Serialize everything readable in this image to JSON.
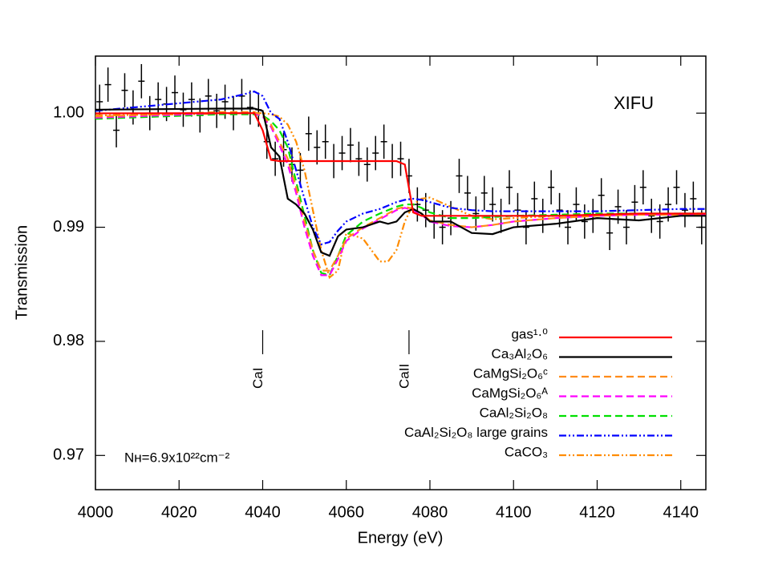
{
  "chart_data": {
    "type": "line",
    "xlabel": "Energy (eV)",
    "ylabel": "Transmission",
    "xlim": [
      4000,
      4146
    ],
    "ylim": [
      0.967,
      1.005
    ],
    "xticks": [
      4000,
      4020,
      4040,
      4060,
      4080,
      4100,
      4120,
      4140
    ],
    "yticks": [
      0.97,
      0.98,
      0.99,
      {
        "value": 1,
        "label": "1.00"
      }
    ],
    "instrument_label": "XIFU",
    "column_density_label": "Nʜ=6.9x10²²cm⁻²",
    "line_markers": [
      {
        "label": "CaI",
        "x": 4040
      },
      {
        "label": "CaII",
        "x": 4075
      }
    ],
    "legend_position": "lower right",
    "x": [
      4000,
      4030,
      4036,
      4038,
      4040,
      4042,
      4044,
      4046,
      4048,
      4050,
      4052,
      4054,
      4056,
      4058,
      4060,
      4064,
      4068,
      4070,
      4072,
      4074,
      4076,
      4078,
      4080,
      4085,
      4090,
      4095,
      4100,
      4110,
      4120,
      4130,
      4140,
      4146
    ],
    "series": [
      {
        "name": "gas¹·⁰",
        "color": "#ff0000",
        "linestyle": "solid",
        "values": [
          0.99998,
          1.0,
          1.0,
          1.0,
          0.9985,
          0.9959,
          0.9958,
          0.9958,
          0.9958,
          0.9958,
          0.9958,
          0.9958,
          0.9958,
          0.9958,
          0.9958,
          0.9958,
          0.9958,
          0.9958,
          0.9958,
          0.9955,
          0.9913,
          0.991,
          0.991,
          0.991,
          0.991,
          0.991,
          0.991,
          0.991,
          0.9911,
          0.9912,
          0.9912,
          0.9912
        ]
      },
      {
        "name": "Ca₃Al₂O₆",
        "color": "#000000",
        "linestyle": "solid",
        "values": [
          1.0003,
          1.0004,
          1.0004,
          1.0004,
          1.0002,
          0.997,
          0.9962,
          0.9925,
          0.992,
          0.9912,
          0.9898,
          0.9878,
          0.9875,
          0.9892,
          0.9898,
          0.99,
          0.9905,
          0.9903,
          0.9905,
          0.9913,
          0.9916,
          0.9912,
          0.9905,
          0.9905,
          0.9895,
          0.9894,
          0.99,
          0.9903,
          0.9908,
          0.9906,
          0.991,
          0.991
        ]
      },
      {
        "name": "CaMgSi₂O₆ᶜ",
        "color": "#ff8c1a",
        "linestyle": "dashed",
        "values": [
          0.9997,
          1.0001,
          1.0001,
          1.0001,
          0.9998,
          0.999,
          0.9975,
          0.996,
          0.9935,
          0.9905,
          0.988,
          0.9862,
          0.9862,
          0.9875,
          0.989,
          0.99,
          0.9908,
          0.9912,
          0.9916,
          0.9918,
          0.9916,
          0.9912,
          0.9906,
          0.9902,
          0.99,
          0.9902,
          0.9905,
          0.9908,
          0.991,
          0.9911,
          0.9911,
          0.9911
        ]
      },
      {
        "name": "CaMgSi₂O₆ᴬ",
        "color": "#ff00ff",
        "linestyle": "dashed",
        "values": [
          0.9996,
          1.0,
          1.0,
          1.0,
          0.9997,
          0.9988,
          0.9972,
          0.9955,
          0.993,
          0.99,
          0.9875,
          0.9858,
          0.9858,
          0.9872,
          0.9888,
          0.9899,
          0.9907,
          0.9911,
          0.9915,
          0.9917,
          0.9915,
          0.9911,
          0.9905,
          0.9901,
          0.99,
          0.9902,
          0.9905,
          0.9908,
          0.991,
          0.9911,
          0.9911,
          0.9911
        ]
      },
      {
        "name": "CaAl₂Si₂O₈",
        "color": "#00e000",
        "linestyle": "dashed",
        "values": [
          0.9995,
          0.9999,
          0.9999,
          0.9999,
          0.9998,
          0.9993,
          0.9985,
          0.997,
          0.994,
          0.991,
          0.988,
          0.986,
          0.9858,
          0.9875,
          0.9893,
          0.9905,
          0.9912,
          0.9915,
          0.9918,
          0.992,
          0.992,
          0.9917,
          0.9913,
          0.9908,
          0.9908,
          0.9909,
          0.991,
          0.9911,
          0.9912,
          0.9912,
          0.9912,
          0.9912
        ]
      },
      {
        "name": "CaAl₂Si₂O₈ large grains",
        "color": "#0000ff",
        "linestyle": "dashdotdot",
        "values": [
          1.0002,
          1.0012,
          1.0017,
          1.0019,
          1.0015,
          1.0,
          0.9995,
          0.9975,
          0.995,
          0.9925,
          0.99,
          0.9885,
          0.9887,
          0.9897,
          0.9905,
          0.9912,
          0.9916,
          0.9919,
          0.9922,
          0.9924,
          0.9925,
          0.9924,
          0.9922,
          0.9917,
          0.9915,
          0.9914,
          0.9914,
          0.9914,
          0.9914,
          0.9915,
          0.9916,
          0.9916
        ]
      },
      {
        "name": "CaCO₃",
        "color": "#ff8c00",
        "linestyle": "dashdotdot",
        "values": [
          0.9998,
          0.99995,
          1.0,
          1.0,
          1.0,
          0.9999,
          0.9997,
          0.999,
          0.9975,
          0.995,
          0.9915,
          0.988,
          0.9856,
          0.9862,
          0.9895,
          0.989,
          0.987,
          0.987,
          0.988,
          0.9905,
          0.992,
          0.9925,
          0.9926,
          0.9918,
          0.991,
          0.9907,
          0.9908,
          0.991,
          0.9911,
          0.9911,
          0.9912,
          0.9912
        ]
      }
    ],
    "observed": {
      "color": "#000000",
      "x": [
        4001,
        4003,
        4005,
        4007,
        4009,
        4011,
        4013,
        4015,
        4017,
        4019,
        4021,
        4023,
        4025,
        4027,
        4029,
        4031,
        4033,
        4035,
        4037,
        4039,
        4041,
        4043,
        4045,
        4047,
        4049,
        4051,
        4053,
        4055,
        4057,
        4059,
        4061,
        4063,
        4065,
        4067,
        4069,
        4071,
        4073,
        4075,
        4077,
        4079,
        4081,
        4083,
        4085,
        4087,
        4089,
        4091,
        4093,
        4095,
        4097,
        4099,
        4101,
        4103,
        4105,
        4107,
        4109,
        4111,
        4113,
        4115,
        4117,
        4119,
        4121,
        4123,
        4125,
        4127,
        4129,
        4131,
        4133,
        4135,
        4137,
        4139,
        4141,
        4143,
        4145
      ],
      "values": [
        1.001,
        1.0025,
        0.9985,
        1.002,
        1.0005,
        1.0028,
        1.0,
        1.0012,
        1.0008,
        1.0018,
        1.0003,
        1.0012,
        0.9998,
        1.0015,
        1.0002,
        1.001,
        1.0,
        1.0015,
        1.0005,
        1.0003,
        0.9975,
        0.996,
        0.9968,
        0.9955,
        0.995,
        0.9982,
        0.997,
        0.9975,
        0.9958,
        0.9965,
        0.9972,
        0.996,
        0.9955,
        0.9965,
        0.9975,
        0.9958,
        0.996,
        0.9945,
        0.992,
        0.9915,
        0.9905,
        0.99,
        0.9908,
        0.9945,
        0.993,
        0.9912,
        0.993,
        0.992,
        0.991,
        0.9935,
        0.9915,
        0.99,
        0.9925,
        0.991,
        0.9935,
        0.9915,
        0.99,
        0.992,
        0.9905,
        0.991,
        0.9928,
        0.9895,
        0.9918,
        0.99,
        0.9922,
        0.9935,
        0.991,
        0.9905,
        0.992,
        0.9935,
        0.9915,
        0.9925,
        0.99
      ],
      "errors": [
        0.0015,
        0.0015,
        0.0015,
        0.0015,
        0.0015,
        0.0015,
        0.0015,
        0.0015,
        0.0015,
        0.0015,
        0.0015,
        0.0015,
        0.0015,
        0.0015,
        0.0015,
        0.0015,
        0.0015,
        0.0015,
        0.0015,
        0.0015,
        0.0015,
        0.0015,
        0.0015,
        0.0015,
        0.0015,
        0.0015,
        0.0015,
        0.0015,
        0.0015,
        0.0015,
        0.0015,
        0.0015,
        0.0015,
        0.0015,
        0.0015,
        0.0015,
        0.0015,
        0.0015,
        0.0015,
        0.0015,
        0.0015,
        0.0015,
        0.0015,
        0.0015,
        0.0015,
        0.0015,
        0.0015,
        0.0015,
        0.0015,
        0.0015,
        0.0015,
        0.0015,
        0.0015,
        0.0015,
        0.0015,
        0.0015,
        0.0015,
        0.0015,
        0.0015,
        0.0015,
        0.0015,
        0.0015,
        0.0015,
        0.0015,
        0.0015,
        0.0015,
        0.0015,
        0.0015,
        0.0015,
        0.0015,
        0.0015,
        0.0015,
        0.0015
      ]
    }
  }
}
